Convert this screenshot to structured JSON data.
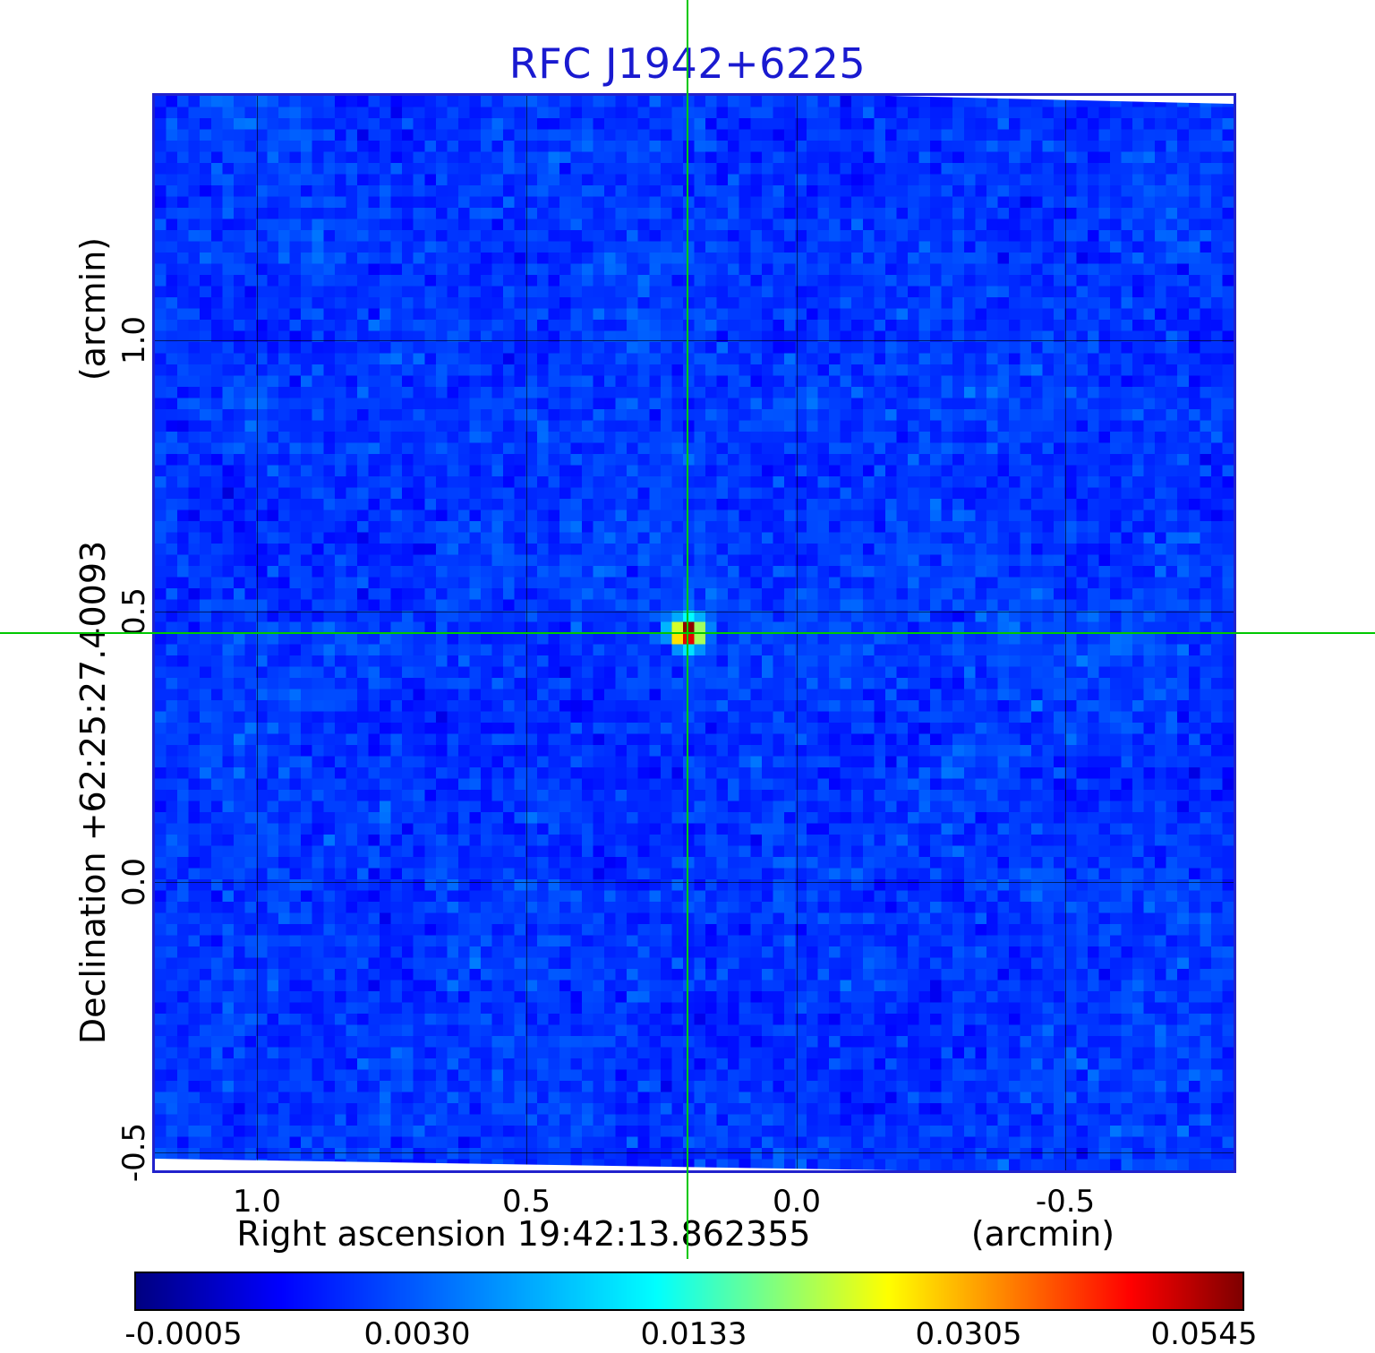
{
  "chart_data": {
    "type": "heatmap",
    "title": "RFC J1942+6225",
    "x_axis": {
      "label": "Right ascension  19:42:13.862355",
      "unit_label": "(arcmin)",
      "tick_labels": [
        "1.0",
        "0.5",
        "0.0",
        "-0.5"
      ],
      "tick_values": [
        1.0,
        0.5,
        0.0,
        -0.5
      ]
    },
    "y_axis": {
      "label": "Declination  +62:25:27.40093",
      "unit_label": "(arcmin)",
      "tick_labels": [
        "1.0",
        "0.5",
        "0.0",
        "-0.5"
      ],
      "tick_values": [
        1.0,
        0.5,
        0.0,
        -0.5
      ]
    },
    "colorbar": {
      "tick_labels": [
        "-0.0005",
        "0.0030",
        "0.0133",
        "0.0305",
        "0.0545"
      ],
      "tick_values": [
        -0.0005,
        0.003,
        0.0133,
        0.0305,
        0.0545
      ],
      "colormap": "jet",
      "stops": [
        [
          0.0,
          [
            0,
            0,
            130
          ]
        ],
        [
          0.13,
          [
            0,
            0,
            255
          ]
        ],
        [
          0.47,
          [
            0,
            255,
            255
          ]
        ],
        [
          0.68,
          [
            255,
            255,
            0
          ]
        ],
        [
          0.9,
          [
            255,
            0,
            0
          ]
        ],
        [
          1.0,
          [
            128,
            0,
            0
          ]
        ]
      ]
    },
    "source": {
      "description": "compact bright radio source at the green crosshair intersection near field center",
      "position_frac": {
        "x": 0.4938,
        "y": 0.4996
      },
      "amplitude_t": 0.85,
      "sigma_cells": 0.95
    },
    "background": {
      "mean_t": 0.2,
      "sigma_t": 0.03,
      "coarse_t": 0.016
    },
    "grid": {
      "cells": 96
    },
    "colors": {
      "title": "#1a1ad0",
      "frame": "#2222cc",
      "crosshair": "#00c800",
      "gridline": "#000000"
    }
  }
}
